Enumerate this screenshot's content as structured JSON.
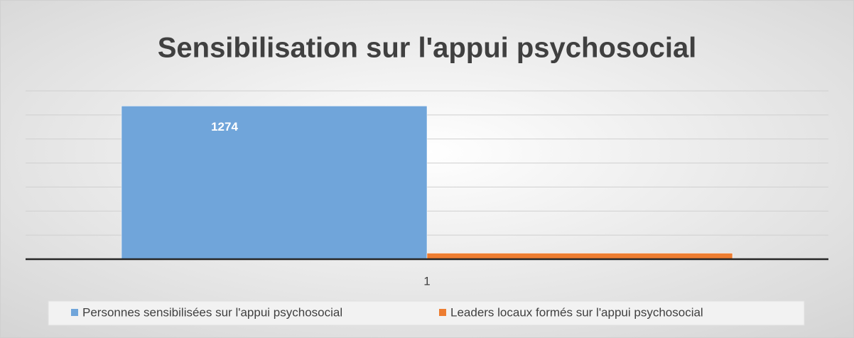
{
  "chart_data": {
    "type": "bar",
    "title": "Sensibilisation sur l'appui psychosocial",
    "categories": [
      "1"
    ],
    "series": [
      {
        "name": "Personnes sensibilisées sur l'appui psychosocial",
        "color": "#70a5da",
        "values": [
          1274
        ]
      },
      {
        "name": "Leaders locaux formés sur l'appui psychosocial",
        "color": "#ed7d31",
        "values": [
          50
        ]
      }
    ],
    "ylim": [
      0,
      1400
    ],
    "yticks": [
      0,
      200,
      400,
      600,
      800,
      1000,
      1200,
      1400
    ],
    "grid": true,
    "legend": "bottom"
  }
}
